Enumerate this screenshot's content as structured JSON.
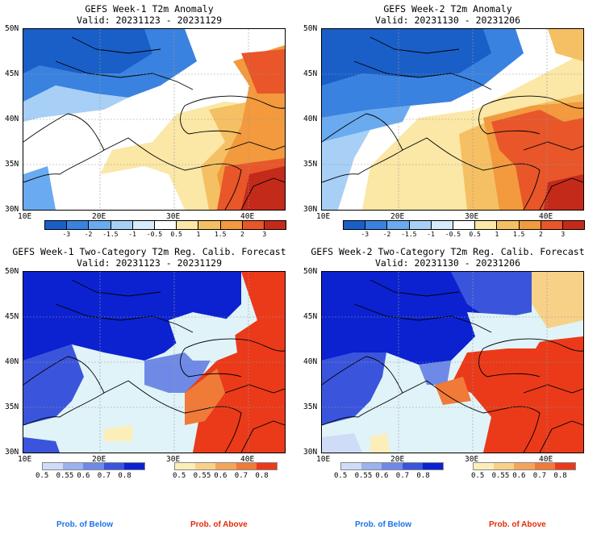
{
  "panels": [
    {
      "title": "GEFS Week-1 T2m Anomaly",
      "valid": "Valid: 20231123 - 20231129"
    },
    {
      "title": "GEFS Week-2 T2m Anomaly",
      "valid": "Valid: 20231130 - 20231206"
    },
    {
      "title": "GEFS Week-1 Two-Category T2m Reg. Calib. Forecast",
      "valid": "Valid: 20231123 - 20231129"
    },
    {
      "title": "GEFS Week-2 Two-Category T2m Reg. Calib. Forecast",
      "valid": "Valid: 20231130 - 20231206"
    }
  ],
  "lat_labels": [
    "50N",
    "45N",
    "40N",
    "35N",
    "30N"
  ],
  "lon_labels": [
    "10E",
    "20E",
    "30E",
    "40E"
  ],
  "anomaly_colorbar": {
    "ticks": [
      "-3",
      "-2",
      "-1.5",
      "-1",
      "-0.5",
      "0.5",
      "1",
      "1.5",
      "2",
      "3"
    ],
    "colors": [
      "#1a5fc8",
      "#3a82e0",
      "#6aaaf0",
      "#a8cff5",
      "#d6ebfb",
      "#ffffff",
      "#fbe7a6",
      "#f5c063",
      "#f29a3d",
      "#e8562a",
      "#c42a1a"
    ]
  },
  "prob_below": {
    "ticks": [
      "0.5",
      "0.55",
      "0.6",
      "0.7",
      "0.8"
    ],
    "colors": [
      "#cfdcf8",
      "#9bb2ee",
      "#6f8ae6",
      "#3a55dc",
      "#0c22d0"
    ],
    "label": "Prob. of Below",
    "label_color": "#1a73e8"
  },
  "prob_above": {
    "ticks": [
      "0.5",
      "0.55",
      "0.6",
      "0.7",
      "0.8"
    ],
    "colors": [
      "#fbeeb8",
      "#f8d189",
      "#f5a55a",
      "#f07a38",
      "#ea3a1a"
    ],
    "label": "Prob. of Above",
    "label_color": "#e62a0a"
  }
}
